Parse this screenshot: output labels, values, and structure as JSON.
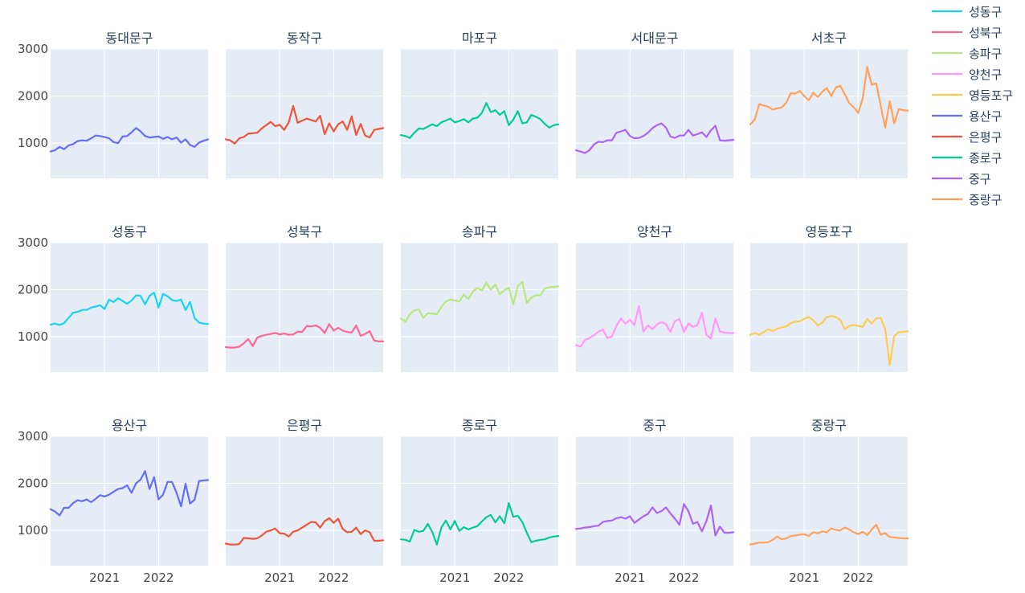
{
  "chart_data": {
    "type": "line",
    "facet": "small-multiples",
    "x_unit": "month",
    "x_start": "2020-01",
    "x_end": "2022-12",
    "ylim": [
      250,
      3000
    ],
    "y_ticks": [
      1000,
      2000,
      3000
    ],
    "x_tick_labels": [
      "2021",
      "2022"
    ],
    "grid": true,
    "legend_position": "right",
    "panels": [
      {
        "name": "동대문구",
        "color": "#636efa",
        "values": [
          820,
          850,
          920,
          870,
          950,
          980,
          1040,
          1060,
          1050,
          1100,
          1160,
          1150,
          1130,
          1100,
          1020,
          1000,
          1140,
          1150,
          1230,
          1320,
          1250,
          1150,
          1120,
          1130,
          1140,
          1090,
          1130,
          1080,
          1120,
          1010,
          1080,
          960,
          920,
          1010,
          1050,
          1080
        ]
      },
      {
        "name": "동작구",
        "color": "#EF553B",
        "values": [
          1080,
          1060,
          990,
          1100,
          1130,
          1200,
          1210,
          1220,
          1310,
          1380,
          1450,
          1360,
          1390,
          1280,
          1440,
          1790,
          1430,
          1480,
          1520,
          1490,
          1460,
          1580,
          1190,
          1420,
          1250,
          1400,
          1460,
          1280,
          1570,
          1170,
          1410,
          1160,
          1120,
          1280,
          1300,
          1320
        ]
      },
      {
        "name": "마포구",
        "color": "#00cc96",
        "values": [
          1170,
          1150,
          1110,
          1220,
          1310,
          1300,
          1350,
          1400,
          1360,
          1440,
          1480,
          1520,
          1440,
          1470,
          1510,
          1440,
          1520,
          1540,
          1640,
          1850,
          1660,
          1700,
          1600,
          1680,
          1380,
          1500,
          1680,
          1420,
          1440,
          1600,
          1560,
          1510,
          1410,
          1330,
          1380,
          1400
        ]
      },
      {
        "name": "서대문구",
        "color": "#ab63fa",
        "values": [
          850,
          820,
          790,
          850,
          970,
          1030,
          1020,
          1060,
          1060,
          1220,
          1250,
          1280,
          1150,
          1100,
          1110,
          1150,
          1220,
          1320,
          1380,
          1420,
          1330,
          1140,
          1110,
          1160,
          1160,
          1280,
          1160,
          1190,
          1230,
          1130,
          1270,
          1370,
          1060,
          1050,
          1060,
          1070
        ]
      },
      {
        "name": "서초구",
        "color": "#FFA15A",
        "values": [
          1400,
          1500,
          1830,
          1800,
          1770,
          1710,
          1740,
          1760,
          1860,
          2060,
          2050,
          2110,
          2000,
          1910,
          2070,
          1980,
          2090,
          2170,
          2000,
          2180,
          2220,
          2040,
          1850,
          1760,
          1640,
          1950,
          2620,
          2240,
          2270,
          1790,
          1330,
          1890,
          1420,
          1720,
          1700,
          1690
        ]
      },
      {
        "name": "성동구",
        "color": "#19d3f3",
        "values": [
          1260,
          1280,
          1250,
          1290,
          1400,
          1510,
          1530,
          1570,
          1570,
          1620,
          1640,
          1670,
          1590,
          1790,
          1740,
          1820,
          1760,
          1700,
          1770,
          1880,
          1870,
          1690,
          1870,
          1940,
          1620,
          1910,
          1860,
          1780,
          1760,
          1790,
          1570,
          1740,
          1400,
          1300,
          1280,
          1270
        ]
      },
      {
        "name": "성북구",
        "color": "#FF6692",
        "values": [
          780,
          770,
          770,
          790,
          860,
          950,
          800,
          980,
          1020,
          1040,
          1060,
          1080,
          1050,
          1070,
          1040,
          1050,
          1110,
          1100,
          1230,
          1220,
          1240,
          1190,
          1080,
          1270,
          1130,
          1190,
          1130,
          1100,
          1090,
          1240,
          1020,
          1060,
          1120,
          920,
          900,
          900
        ]
      },
      {
        "name": "송파구",
        "color": "#B6E880",
        "values": [
          1390,
          1320,
          1480,
          1560,
          1580,
          1400,
          1500,
          1490,
          1480,
          1630,
          1750,
          1790,
          1770,
          1750,
          1900,
          1800,
          1960,
          2040,
          1980,
          2150,
          2000,
          2110,
          1900,
          1990,
          2040,
          1690,
          2070,
          2170,
          1720,
          1830,
          1880,
          1880,
          2030,
          2050,
          2060,
          2070
        ]
      },
      {
        "name": "양천구",
        "color": "#FF97FF",
        "values": [
          820,
          790,
          930,
          970,
          1030,
          1110,
          1150,
          970,
          1010,
          1230,
          1390,
          1280,
          1360,
          1250,
          1650,
          1110,
          1240,
          1160,
          1260,
          1310,
          1270,
          1100,
          1330,
          1380,
          1100,
          1280,
          1210,
          1250,
          1510,
          1040,
          960,
          1390,
          1110,
          1090,
          1080,
          1080
        ]
      },
      {
        "name": "영등포구",
        "color": "#FECB52",
        "values": [
          1040,
          1080,
          1040,
          1100,
          1160,
          1120,
          1170,
          1200,
          1220,
          1290,
          1320,
          1330,
          1380,
          1420,
          1350,
          1240,
          1300,
          1420,
          1440,
          1420,
          1360,
          1160,
          1230,
          1250,
          1230,
          1210,
          1380,
          1280,
          1390,
          1400,
          1160,
          400,
          1010,
          1100,
          1100,
          1120
        ]
      },
      {
        "name": "용산구",
        "color": "#636efa",
        "values": [
          1450,
          1400,
          1320,
          1480,
          1480,
          1580,
          1640,
          1620,
          1660,
          1600,
          1670,
          1750,
          1720,
          1760,
          1820,
          1880,
          1900,
          1960,
          1800,
          2000,
          2080,
          2260,
          1880,
          2130,
          1660,
          1760,
          2030,
          2030,
          1800,
          1510,
          1990,
          1570,
          1650,
          2050,
          2060,
          2070
        ]
      },
      {
        "name": "은평구",
        "color": "#EF553B",
        "values": [
          720,
          700,
          700,
          710,
          840,
          830,
          820,
          830,
          890,
          970,
          1000,
          1040,
          940,
          930,
          870,
          970,
          1000,
          1060,
          1120,
          1180,
          1170,
          1060,
          1200,
          1260,
          1160,
          1250,
          1030,
          960,
          970,
          1060,
          920,
          1000,
          960,
          780,
          780,
          790
        ]
      },
      {
        "name": "종로구",
        "color": "#00cc96",
        "values": [
          810,
          800,
          760,
          1010,
          970,
          990,
          1140,
          960,
          700,
          1060,
          1210,
          1020,
          1200,
          990,
          1070,
          1020,
          1060,
          1090,
          1190,
          1280,
          1330,
          1170,
          1300,
          1150,
          1580,
          1290,
          1310,
          1180,
          950,
          750,
          780,
          800,
          810,
          850,
          870,
          880
        ]
      },
      {
        "name": "중구",
        "color": "#ab63fa",
        "values": [
          1030,
          1040,
          1060,
          1070,
          1090,
          1100,
          1180,
          1200,
          1210,
          1260,
          1280,
          1250,
          1300,
          1160,
          1230,
          1300,
          1350,
          1490,
          1370,
          1410,
          1490,
          1360,
          1250,
          1120,
          1560,
          1410,
          1140,
          1180,
          980,
          1200,
          1530,
          890,
          1080,
          950,
          950,
          960
        ]
      },
      {
        "name": "중랑구",
        "color": "#FFA15A",
        "values": [
          700,
          720,
          740,
          740,
          750,
          800,
          870,
          810,
          830,
          880,
          890,
          910,
          920,
          880,
          960,
          940,
          980,
          960,
          1040,
          1010,
          1000,
          1060,
          1020,
          960,
          920,
          970,
          900,
          1020,
          1120,
          910,
          940,
          860,
          850,
          840,
          830,
          830
        ]
      }
    ],
    "legend": [
      {
        "name": "성동구",
        "color": "#19d3f3"
      },
      {
        "name": "성북구",
        "color": "#FF6692"
      },
      {
        "name": "송파구",
        "color": "#B6E880"
      },
      {
        "name": "양천구",
        "color": "#FF97FF"
      },
      {
        "name": "영등포구",
        "color": "#FECB52"
      },
      {
        "name": "용산구",
        "color": "#636efa"
      },
      {
        "name": "은평구",
        "color": "#EF553B"
      },
      {
        "name": "종로구",
        "color": "#00cc96"
      },
      {
        "name": "중구",
        "color": "#ab63fa"
      },
      {
        "name": "중랑구",
        "color": "#FFA15A"
      }
    ]
  }
}
